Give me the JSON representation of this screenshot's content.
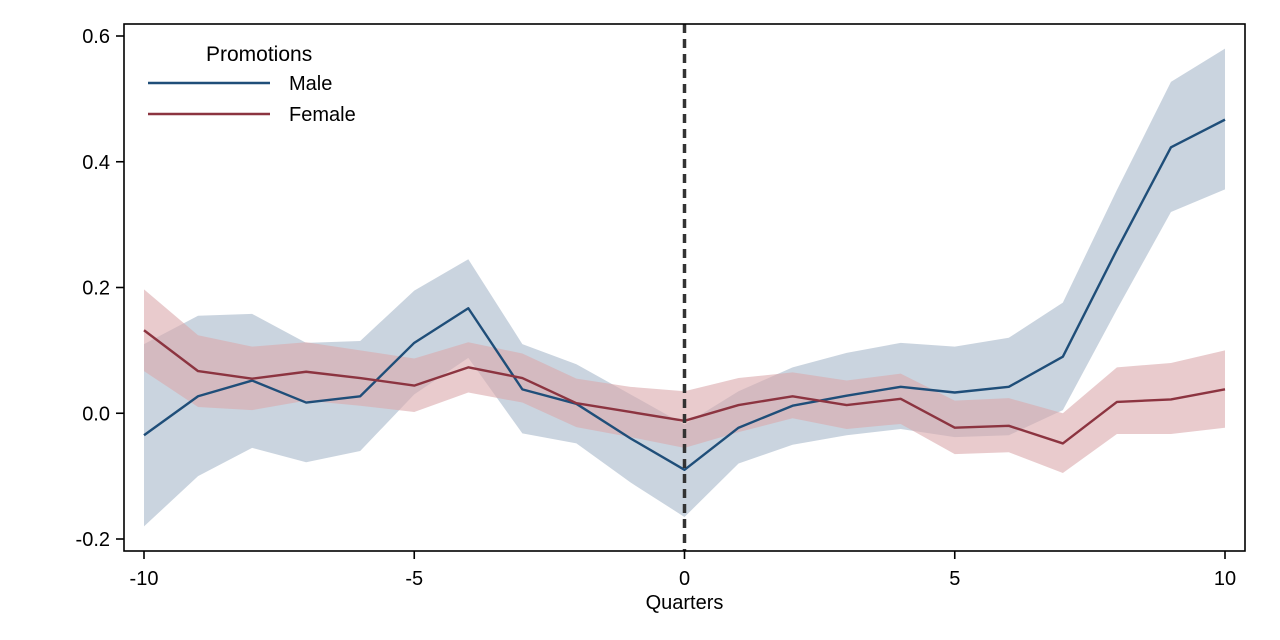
{
  "chart_data": {
    "type": "line",
    "title": "",
    "xlabel": "Quarters",
    "ylabel": "",
    "xlim": [
      -10,
      10
    ],
    "ylim": [
      -0.2,
      0.6
    ],
    "x_ticks": [
      -10,
      -5,
      0,
      5,
      10
    ],
    "x_tick_labels": [
      "-10",
      "-5",
      "0",
      "5",
      "10"
    ],
    "y_ticks": [
      -0.2,
      0.0,
      0.2,
      0.4,
      0.6
    ],
    "y_tick_labels": [
      "-0.2",
      "0.0",
      "0.2",
      "0.4",
      "0.6"
    ],
    "grid": false,
    "legend": {
      "title": "Promotions",
      "placement": "top-left"
    },
    "reference_line": {
      "x": 0,
      "style": "dashed",
      "color": "#333333"
    },
    "x": [
      -10,
      -9,
      -8,
      -7,
      -6,
      -5,
      -4,
      -3,
      -2,
      -1,
      0,
      1,
      2,
      3,
      4,
      5,
      6,
      7,
      8,
      9,
      10
    ],
    "series": [
      {
        "name": "Male",
        "color": "#1f4e79",
        "band_color": "#a7b8ca",
        "values": [
          -0.035,
          0.027,
          0.052,
          0.017,
          0.027,
          0.112,
          0.167,
          0.038,
          0.015,
          -0.04,
          -0.09,
          -0.023,
          0.012,
          0.028,
          0.042,
          0.033,
          0.042,
          0.09,
          0.26,
          0.423,
          0.467
        ],
        "lower": [
          -0.18,
          -0.1,
          -0.055,
          -0.078,
          -0.06,
          0.03,
          0.088,
          -0.032,
          -0.048,
          -0.11,
          -0.165,
          -0.08,
          -0.05,
          -0.035,
          -0.025,
          -0.038,
          -0.035,
          0.005,
          0.165,
          0.32,
          0.356
        ],
        "upper": [
          0.11,
          0.155,
          0.158,
          0.112,
          0.115,
          0.195,
          0.245,
          0.11,
          0.078,
          0.03,
          -0.018,
          0.035,
          0.073,
          0.096,
          0.112,
          0.106,
          0.12,
          0.176,
          0.355,
          0.527,
          0.58
        ]
      },
      {
        "name": "Female",
        "color": "#8c3440",
        "band_color": "#dba9ab",
        "values": [
          0.132,
          0.067,
          0.055,
          0.066,
          0.056,
          0.044,
          0.073,
          0.056,
          0.016,
          0.002,
          -0.012,
          0.013,
          0.027,
          0.013,
          0.023,
          -0.023,
          -0.02,
          -0.048,
          0.018,
          0.022,
          0.038
        ],
        "lower": [
          0.067,
          0.01,
          0.005,
          0.02,
          0.012,
          0.002,
          0.033,
          0.017,
          -0.022,
          -0.038,
          -0.055,
          -0.03,
          -0.008,
          -0.025,
          -0.017,
          -0.065,
          -0.062,
          -0.095,
          -0.033,
          -0.033,
          -0.023
        ],
        "upper": [
          0.197,
          0.124,
          0.106,
          0.113,
          0.1,
          0.087,
          0.113,
          0.095,
          0.055,
          0.042,
          0.035,
          0.056,
          0.065,
          0.052,
          0.063,
          0.02,
          0.024,
          0.0,
          0.073,
          0.08,
          0.1
        ]
      }
    ]
  }
}
